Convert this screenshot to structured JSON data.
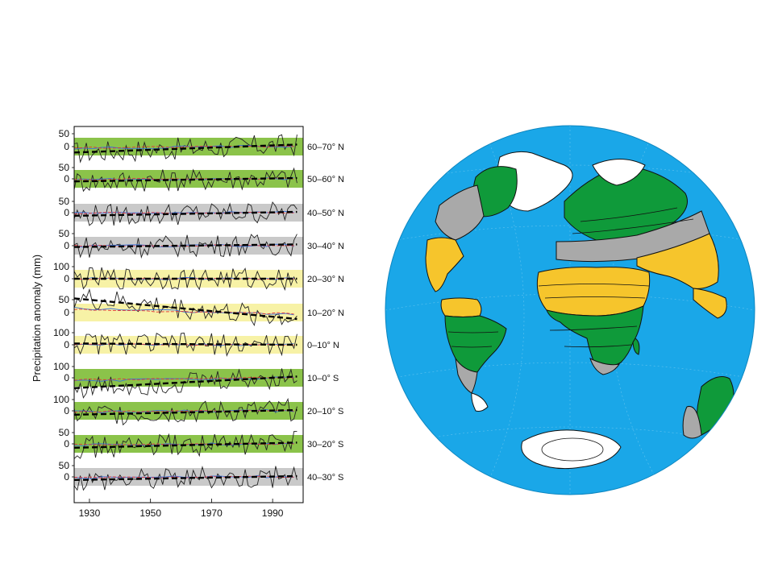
{
  "chart_data": {
    "type": "line",
    "ylabel": "Precipitation anomaly (mm)",
    "x_ticks": [
      1930,
      1950,
      1970,
      1990
    ],
    "xlim": [
      1925,
      2000
    ],
    "series_legend": [],
    "bands": [
      {
        "label": "60–70° N",
        "ymax_label": "50",
        "tick_labels": [
          "50",
          "0"
        ],
        "shading": "green",
        "trend": [
          -23,
          8
        ]
      },
      {
        "label": "50–60° N",
        "ymax_label": "50",
        "tick_labels": [
          "50",
          "0"
        ],
        "shading": "green",
        "trend": [
          -10,
          3
        ]
      },
      {
        "label": "40–50° N",
        "ymax_label": "50",
        "tick_labels": [
          "50",
          "0"
        ],
        "shading": "gray",
        "trend": [
          -12,
          3
        ]
      },
      {
        "label": "30–40° N",
        "ymax_label": "50",
        "tick_labels": [
          "50",
          "0"
        ],
        "shading": "gray",
        "trend": [
          -5,
          5
        ]
      },
      {
        "label": "20–30° N",
        "ymax_label": "100",
        "tick_labels": [
          "100",
          "0"
        ],
        "shading": "yellow",
        "trend": [
          0,
          0
        ]
      },
      {
        "label": "10–20° N",
        "ymax_label": "50",
        "tick_labels": [
          "50",
          "0"
        ],
        "shading": "yellow",
        "trend": [
          55,
          -25
        ]
      },
      {
        "label": "0–10° N",
        "ymax_label": "100",
        "tick_labels": [
          "100",
          "0"
        ],
        "shading": "yellow",
        "trend": [
          5,
          0
        ]
      },
      {
        "label": "10–0° S",
        "ymax_label": "100",
        "tick_labels": [
          "100",
          "0"
        ],
        "shading": "green",
        "trend": [
          -40,
          5
        ]
      },
      {
        "label": "20–10° S",
        "ymax_label": "100",
        "tick_labels": [
          "100",
          "0"
        ],
        "shading": "green",
        "trend": [
          -15,
          3
        ]
      },
      {
        "label": "30–20° S",
        "ymax_label": "50",
        "tick_labels": [
          "50",
          "0"
        ],
        "shading": "green",
        "trend": [
          -15,
          5
        ]
      },
      {
        "label": "40–30° S",
        "ymax_label": "50",
        "tick_labels": [
          "50",
          "0"
        ],
        "shading": "gray",
        "trend": [
          -12,
          3
        ]
      }
    ],
    "shading_colors": {
      "green": "#8bc34a",
      "gray": "#c9c9c9",
      "yellow": "#f7f2a6"
    }
  },
  "globe": {
    "ocean_color": "#1aa7e8",
    "land_colors": {
      "green": "#0f9a3a",
      "gray": "#a9a9a9",
      "yellow": "#f6c52c",
      "white": "#ffffff"
    }
  }
}
